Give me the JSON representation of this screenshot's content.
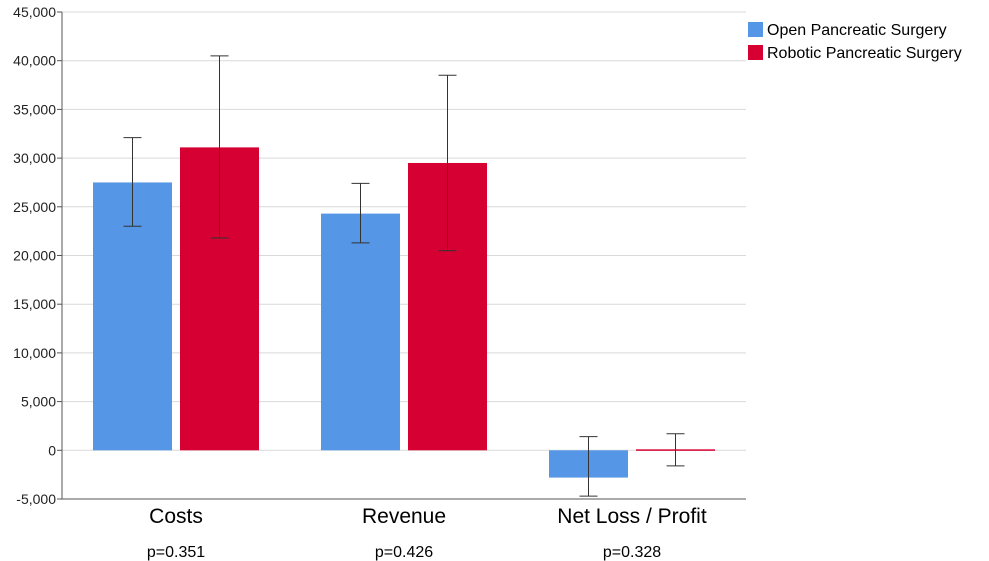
{
  "chart_data": {
    "type": "bar",
    "title": "",
    "xlabel": "",
    "ylabel": "",
    "categories": [
      "Costs",
      "Revenue",
      "Net Loss / Profit"
    ],
    "category_annotations": [
      "p=0.351",
      "p=0.426",
      "p=0.328"
    ],
    "ylim": [
      -5000,
      45000
    ],
    "yticks": [
      -5000,
      0,
      5000,
      10000,
      15000,
      20000,
      25000,
      30000,
      35000,
      40000,
      45000
    ],
    "ytick_labels": [
      "-5,000",
      "0",
      "5,000",
      "10,000",
      "15,000",
      "20,000",
      "25,000",
      "30,000",
      "35,000",
      "40,000",
      "45,000"
    ],
    "grid": true,
    "legend_position": "top-right",
    "series": [
      {
        "name": "Open Pancreatic Surgery",
        "color": "#5596E6",
        "values": [
          27500,
          24300,
          -2800
        ],
        "error_low": [
          23000,
          21300,
          -4700
        ],
        "error_high": [
          32100,
          27400,
          1400
        ]
      },
      {
        "name": "Robotic Pancreatic Surgery",
        "color": "#D70033",
        "values": [
          31100,
          29500,
          100
        ],
        "error_low": [
          21800,
          20500,
          -1600
        ],
        "error_high": [
          40500,
          38500,
          1700
        ]
      }
    ]
  }
}
